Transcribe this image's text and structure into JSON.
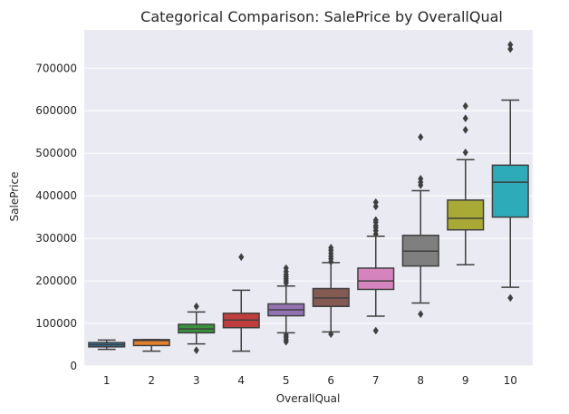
{
  "chart_data": {
    "type": "box",
    "title": "Categorical Comparison: SalePrice by OverallQual",
    "xlabel": "OverallQual",
    "ylabel": "SalePrice",
    "ylim": [
      0,
      790000
    ],
    "y_ticks": [
      0,
      100000,
      200000,
      300000,
      400000,
      500000,
      600000,
      700000
    ],
    "grid": true,
    "categories": [
      "1",
      "2",
      "3",
      "4",
      "5",
      "6",
      "7",
      "8",
      "9",
      "10"
    ],
    "colors": [
      "#3274a1",
      "#e1812c",
      "#3a923a",
      "#c03d3e",
      "#9372b2",
      "#845b53",
      "#d684bd",
      "#7f7f7f",
      "#a9aa35",
      "#2eabb8"
    ],
    "boxes": [
      {
        "category": "1",
        "min": 39000,
        "q1": 45000,
        "median": 50000,
        "q3": 55000,
        "max": 61000,
        "outliers": []
      },
      {
        "category": "2",
        "min": 35000,
        "q1": 48000,
        "median": 60000,
        "q3": 62000,
        "max": 62000,
        "outliers": []
      },
      {
        "category": "3",
        "min": 52000,
        "q1": 78000,
        "median": 87000,
        "q3": 98000,
        "max": 127000,
        "outliers": [
          140000,
          37000
        ]
      },
      {
        "category": "4",
        "min": 35000,
        "q1": 90000,
        "median": 108000,
        "q3": 124000,
        "max": 178000,
        "outliers": [
          256000
        ]
      },
      {
        "category": "5",
        "min": 78000,
        "q1": 118000,
        "median": 132000,
        "q3": 146000,
        "max": 188000,
        "outliers": [
          195000,
          200000,
          205000,
          210000,
          215000,
          222000,
          230000,
          73000,
          68000,
          62000,
          57000
        ]
      },
      {
        "category": "6",
        "min": 80000,
        "q1": 140000,
        "median": 160000,
        "q3": 182000,
        "max": 243000,
        "outliers": [
          245000,
          252000,
          258000,
          265000,
          272000,
          278000,
          75000
        ]
      },
      {
        "category": "7",
        "min": 117000,
        "q1": 180000,
        "median": 200000,
        "q3": 230000,
        "max": 305000,
        "outliers": [
          310000,
          318000,
          325000,
          330000,
          338000,
          343000,
          375000,
          385000,
          83000
        ]
      },
      {
        "category": "8",
        "min": 148000,
        "q1": 235000,
        "median": 270000,
        "q3": 307000,
        "max": 412000,
        "outliers": [
          425000,
          432000,
          440000,
          538000,
          122000
        ]
      },
      {
        "category": "9",
        "min": 238000,
        "q1": 320000,
        "median": 347000,
        "q3": 390000,
        "max": 485000,
        "outliers": [
          502000,
          555000,
          582000,
          611000
        ]
      },
      {
        "category": "10",
        "min": 185000,
        "q1": 350000,
        "median": 432000,
        "q3": 472000,
        "max": 625000,
        "outliers": [
          745000,
          755000,
          160000
        ]
      }
    ]
  }
}
